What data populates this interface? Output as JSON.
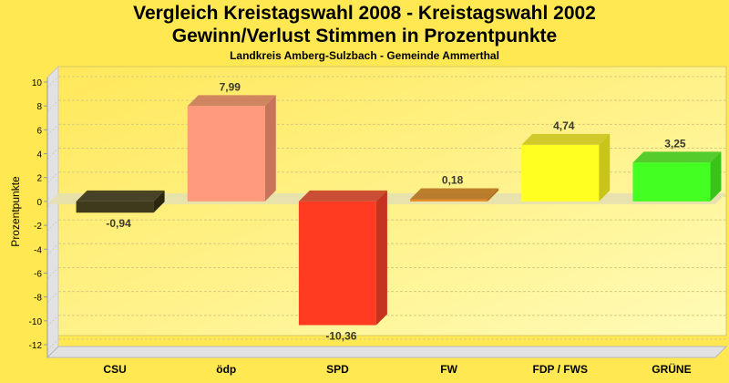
{
  "chart_data": {
    "type": "bar",
    "title": "Vergleich Kreistagswahl 2008 - Kreistagswahl 2002",
    "subtitle": "Gewinn/Verlust Stimmen in Prozentpunkte",
    "subsubtitle": "Landkreis Amberg-Sulzbach - Gemeinde Ammerthal",
    "xlabel": "",
    "ylabel": "Prozentpunkte",
    "ylim": [
      -12,
      10
    ],
    "yticks": [
      10,
      8,
      6,
      4,
      2,
      0,
      -2,
      -4,
      -6,
      -8,
      -10,
      -12
    ],
    "categories": [
      "CSU",
      "ödp",
      "SPD",
      "FW",
      "FDP / FWS",
      "GRÜNE"
    ],
    "values": [
      -0.94,
      7.99,
      -10.36,
      0.18,
      4.74,
      3.25
    ],
    "labels": [
      "-0,94",
      "7,99",
      "-10,36",
      "0,18",
      "4,74",
      "3,25"
    ],
    "colors": [
      "#3f3a1c",
      "#ff9a7c",
      "#ff3c22",
      "#e88a22",
      "#ffff22",
      "#44ff22"
    ],
    "side_colors": [
      "#2a2610",
      "#c8745c",
      "#c43420",
      "#b06a18",
      "#c8c41a",
      "#36c41a"
    ],
    "grid": true
  }
}
